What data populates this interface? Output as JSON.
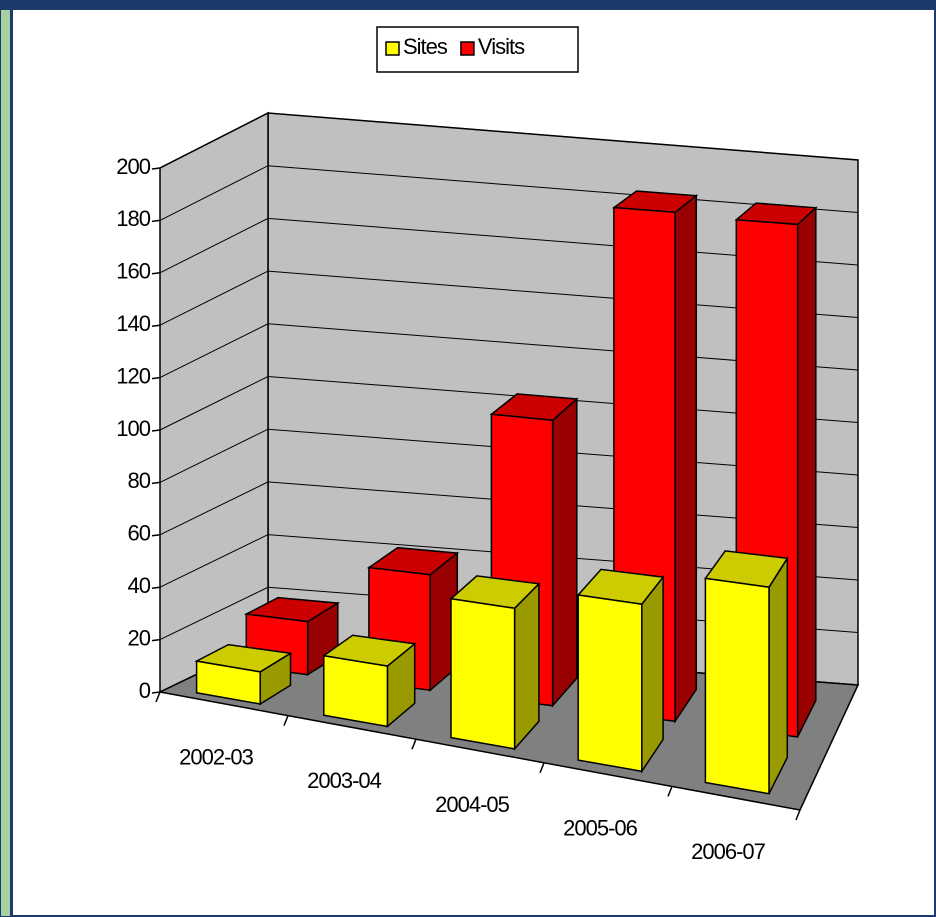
{
  "chart_data": {
    "type": "bar3d",
    "categories": [
      "2002-03",
      "2003-04",
      "2004-05",
      "2005-06",
      "2006-07"
    ],
    "series": [
      {
        "name": "Sites",
        "color": "#ffff00",
        "values": [
          12,
          22,
          50,
          58,
          70
        ]
      },
      {
        "name": "Visits",
        "color": "#ff0000",
        "values": [
          20,
          43,
          105,
          185,
          184
        ]
      }
    ],
    "ylim": [
      0,
      200
    ],
    "yticks": [
      0,
      20,
      40,
      60,
      80,
      100,
      120,
      140,
      160,
      180,
      200
    ],
    "grid": true,
    "legend": "top"
  }
}
